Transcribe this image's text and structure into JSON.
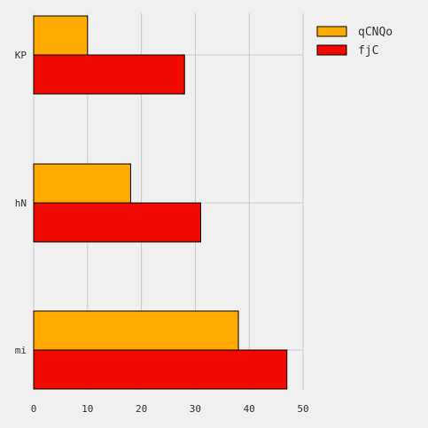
{
  "chart_data": {
    "type": "bar",
    "orientation": "horizontal",
    "categories": [
      "KP",
      "hN",
      "mi"
    ],
    "series": [
      {
        "name": "qCNQo",
        "color": "#ffaa00",
        "values": [
          10,
          18,
          38
        ]
      },
      {
        "name": "fjC",
        "color": "#f00a00",
        "values": [
          28,
          31,
          47
        ]
      }
    ],
    "xlim": [
      0,
      50
    ],
    "xticks": [
      "0",
      "10",
      "20",
      "30",
      "40",
      "50"
    ],
    "grid": true,
    "legend_position": "top-right",
    "title": "",
    "xlabel": "",
    "ylabel": ""
  },
  "colors": {
    "background": "#f0f0f0",
    "grid": "#cbcbcb",
    "bar_edge": "#000000",
    "text": "#333333"
  }
}
